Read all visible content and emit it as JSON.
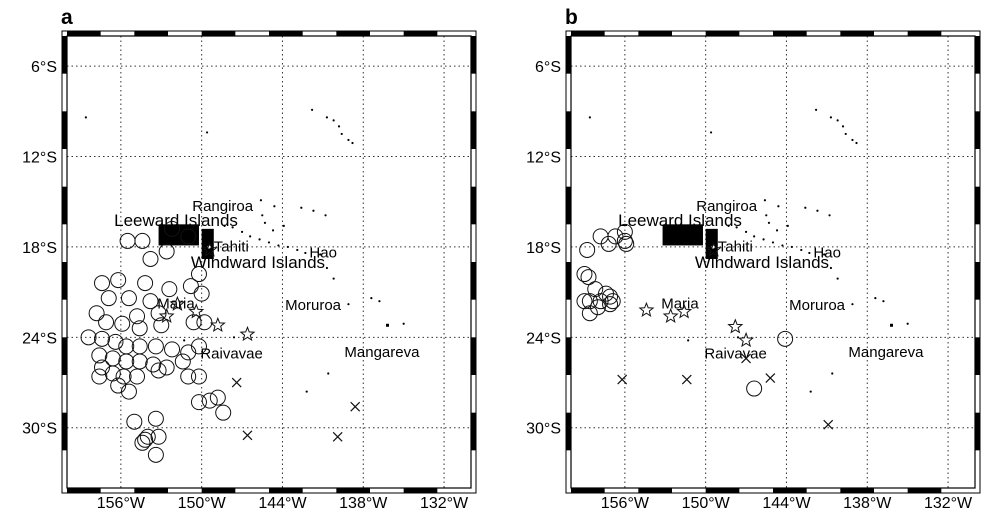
{
  "axes": {
    "lon_ticks": [
      "156°W",
      "150°W",
      "144°W",
      "138°W",
      "132°W"
    ],
    "lat_ticks": [
      "6°S",
      "12°S",
      "18°S",
      "24°S",
      "30°S"
    ]
  },
  "place_labels": [
    {
      "name": "Rangiroa"
    },
    {
      "name": "Leeward Islands"
    },
    {
      "name": "Tahiti"
    },
    {
      "name": "Windward Islands"
    },
    {
      "name": "Hao"
    },
    {
      "name": "Maria"
    },
    {
      "name": "Moruroa"
    },
    {
      "name": "Raivavae"
    },
    {
      "name": "Mangareva"
    }
  ],
  "panels": [
    {
      "label": "a",
      "circles": [
        [
          -155.5,
          17.6
        ],
        [
          -154.4,
          17.6
        ],
        [
          -152.2,
          16.8
        ],
        [
          -151.0,
          17.3
        ],
        [
          -152.6,
          18.3
        ],
        [
          -153.8,
          18.8
        ],
        [
          -156.2,
          20.2
        ],
        [
          -157.4,
          20.4
        ],
        [
          -154.2,
          20.4
        ],
        [
          -152.4,
          20.8
        ],
        [
          -150.8,
          20.6
        ],
        [
          -150.2,
          19.8
        ],
        [
          -150.0,
          21.1
        ],
        [
          -156.9,
          21.4
        ],
        [
          -155.4,
          21.4
        ],
        [
          -153.8,
          21.6
        ],
        [
          -157.8,
          22.4
        ],
        [
          -154.8,
          22.6
        ],
        [
          -153.2,
          22.4
        ],
        [
          -157.1,
          23.0
        ],
        [
          -155.9,
          23.1
        ],
        [
          -154.6,
          23.4
        ],
        [
          -153.0,
          23.2
        ],
        [
          -150.6,
          23.0
        ],
        [
          -149.8,
          23.0
        ],
        [
          -158.4,
          24.0
        ],
        [
          -157.4,
          24.1
        ],
        [
          -156.4,
          24.3
        ],
        [
          -155.6,
          24.6
        ],
        [
          -154.6,
          24.6
        ],
        [
          -153.4,
          24.6
        ],
        [
          -152.2,
          24.8
        ],
        [
          -150.2,
          24.6
        ],
        [
          -151.0,
          25.0
        ],
        [
          -157.6,
          25.2
        ],
        [
          -156.6,
          25.4
        ],
        [
          -155.6,
          25.6
        ],
        [
          -154.6,
          25.6
        ],
        [
          -153.6,
          25.8
        ],
        [
          -152.6,
          26.0
        ],
        [
          -151.4,
          25.6
        ],
        [
          -157.4,
          26.0
        ],
        [
          -156.6,
          26.4
        ],
        [
          -157.6,
          26.6
        ],
        [
          -155.8,
          26.6
        ],
        [
          -154.8,
          26.6
        ],
        [
          -153.2,
          26.2
        ],
        [
          -156.2,
          27.2
        ],
        [
          -155.4,
          27.6
        ],
        [
          -151.0,
          26.6
        ],
        [
          -150.2,
          26.6
        ],
        [
          -150.2,
          28.3
        ],
        [
          -148.8,
          28.0
        ],
        [
          -148.4,
          29.0
        ],
        [
          -149.4,
          28.2
        ],
        [
          -155.0,
          29.6
        ],
        [
          -153.4,
          29.4
        ],
        [
          -154.0,
          30.6
        ],
        [
          -153.2,
          30.6
        ],
        [
          -153.4,
          31.8
        ],
        [
          -154.4,
          31.0
        ],
        [
          -154.2,
          30.8
        ]
      ],
      "stars": [
        [
          -149.4,
          18.2
        ],
        [
          -151.8,
          21.8
        ],
        [
          -152.6,
          22.6
        ],
        [
          -150.4,
          22.3
        ],
        [
          -148.8,
          23.2
        ],
        [
          -146.6,
          23.8
        ]
      ],
      "crosses": [
        [
          -147.4,
          27.0
        ],
        [
          -146.6,
          30.5
        ],
        [
          -139.9,
          30.6
        ],
        [
          -138.6,
          28.6
        ]
      ]
    },
    {
      "label": "b",
      "circles": [
        [
          -157.8,
          17.3
        ],
        [
          -156.7,
          17.3
        ],
        [
          -156.0,
          17.0
        ],
        [
          -157.2,
          17.8
        ],
        [
          -155.9,
          17.8
        ],
        [
          -156.0,
          17.6
        ],
        [
          -158.8,
          18.2
        ],
        [
          -159.0,
          19.8
        ],
        [
          -158.7,
          20.0
        ],
        [
          -158.2,
          20.8
        ],
        [
          -157.4,
          21.1
        ],
        [
          -157.1,
          21.3
        ],
        [
          -156.9,
          21.6
        ],
        [
          -157.1,
          21.8
        ],
        [
          -157.8,
          21.6
        ],
        [
          -158.6,
          21.6
        ],
        [
          -159.0,
          21.6
        ],
        [
          -158.6,
          22.4
        ],
        [
          -158.0,
          22.0
        ],
        [
          -144.1,
          24.1
        ],
        [
          -146.4,
          27.4
        ]
      ],
      "stars": [
        [
          -149.4,
          18.2
        ],
        [
          -152.6,
          22.6
        ],
        [
          -154.4,
          22.2
        ],
        [
          -151.6,
          22.3
        ],
        [
          -147.8,
          23.3
        ],
        [
          -147.0,
          24.2
        ]
      ],
      "crosses": [
        [
          -156.2,
          26.8
        ],
        [
          -151.4,
          26.8
        ],
        [
          -145.2,
          26.7
        ],
        [
          -147.0,
          25.4
        ],
        [
          -140.9,
          29.8
        ]
      ]
    }
  ]
}
